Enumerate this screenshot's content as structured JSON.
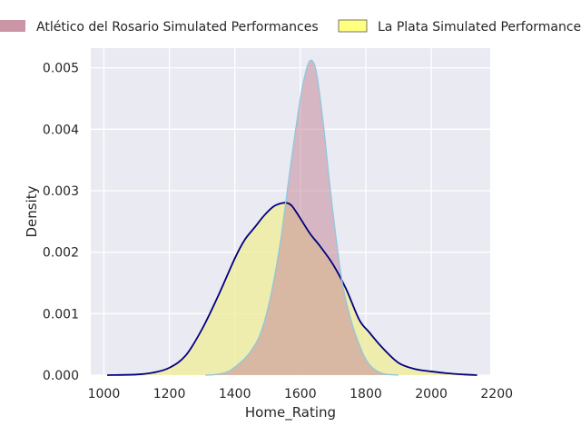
{
  "chart_data": {
    "type": "area",
    "title": "",
    "xlabel": "Home_Rating",
    "ylabel": "Density",
    "xlim": [
      960,
      2180
    ],
    "ylim": [
      0,
      0.00532
    ],
    "xticks": [
      1000,
      1200,
      1400,
      1600,
      1800,
      2000,
      2200
    ],
    "xtick_labels": [
      "1000",
      "1200",
      "1400",
      "1600",
      "1800",
      "2000",
      "2200"
    ],
    "yticks": [
      0,
      0.001,
      0.002,
      0.003,
      0.004,
      0.005
    ],
    "ytick_labels": [
      "0.000",
      "0.001",
      "0.002",
      "0.003",
      "0.004",
      "0.005"
    ],
    "grid": true,
    "legend_position": "top",
    "series": [
      {
        "name": "Atlético del Rosario Simulated Performances",
        "fill_color": "#c48a9a",
        "line_color": "#8ec8de",
        "x": [
          1310,
          1340,
          1380,
          1420,
          1450,
          1480,
          1510,
          1540,
          1570,
          1600,
          1620,
          1635,
          1650,
          1670,
          1690,
          1710,
          1730,
          1760,
          1790,
          1810,
          1830,
          1850,
          1870,
          1900
        ],
        "values": [
          0.0,
          1e-05,
          6e-05,
          0.00022,
          0.0004,
          0.0007,
          0.0013,
          0.0022,
          0.0034,
          0.0045,
          0.005,
          0.00512,
          0.0049,
          0.0041,
          0.0031,
          0.0022,
          0.00145,
          0.0008,
          0.00037,
          0.00018,
          8e-05,
          3e-05,
          1e-05,
          0.0
        ]
      },
      {
        "name": "La Plata Simulated Performances",
        "fill_color": "#f0ee96",
        "line_color": "#000080",
        "x": [
          1010,
          1100,
          1150,
          1200,
          1250,
          1300,
          1350,
          1400,
          1430,
          1460,
          1490,
          1520,
          1545,
          1560,
          1575,
          1600,
          1630,
          1660,
          1700,
          1740,
          1780,
          1810,
          1850,
          1900,
          1950,
          2000,
          2050,
          2100,
          2140
        ],
        "values": [
          0.0,
          1e-05,
          4e-05,
          0.00012,
          0.00032,
          0.00075,
          0.0013,
          0.0019,
          0.0022,
          0.0024,
          0.0026,
          0.00275,
          0.0028,
          0.0028,
          0.00275,
          0.00255,
          0.0023,
          0.0021,
          0.0018,
          0.0014,
          0.0009,
          0.0007,
          0.00045,
          0.0002,
          0.0001,
          6e-05,
          3e-05,
          1e-05,
          0.0
        ]
      }
    ]
  }
}
